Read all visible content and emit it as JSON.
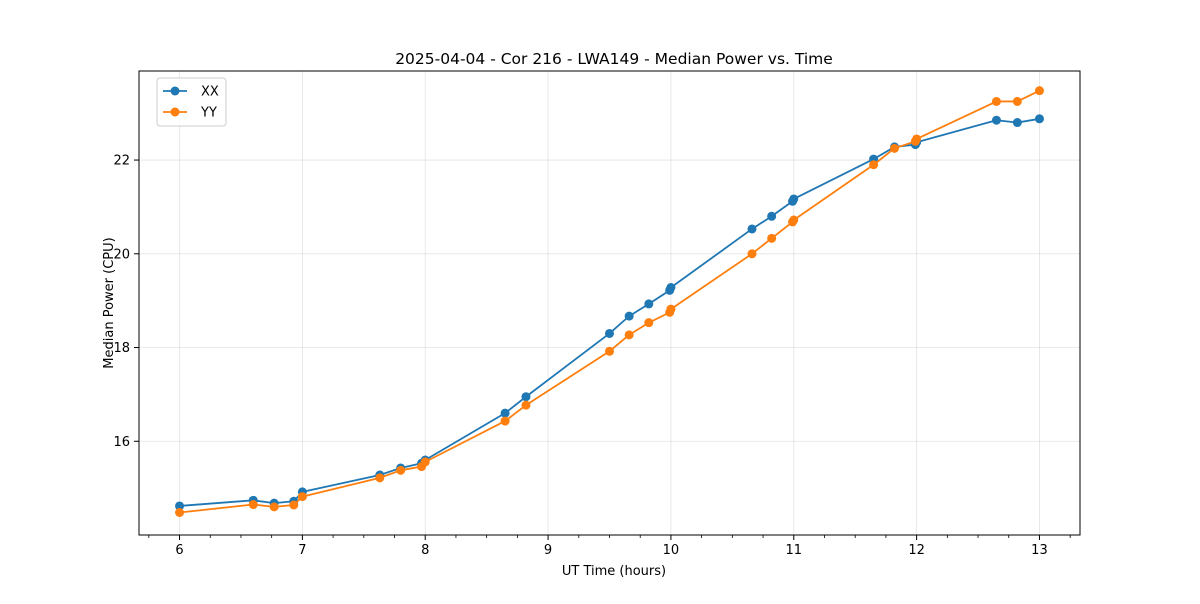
{
  "chart_data": {
    "type": "line",
    "title": "2025-04-04 - Cor 216 - LWA149 - Median Power vs. Time",
    "xlabel": "UT Time (hours)",
    "ylabel": "Median Power (CPU)",
    "xlim": [
      5.67,
      13.33
    ],
    "ylim": [
      14.0,
      23.9
    ],
    "x_ticks": [
      6,
      7,
      8,
      9,
      10,
      11,
      12,
      13
    ],
    "x_tick_labels": [
      "6",
      "7",
      "8",
      "9",
      "10",
      "11",
      "12",
      "13"
    ],
    "x_minor_step": 0.25,
    "y_ticks": [
      16,
      18,
      20,
      22
    ],
    "y_tick_labels": [
      "16",
      "18",
      "20",
      "22"
    ],
    "grid": true,
    "legend_position": "upper-left",
    "series": [
      {
        "name": "XX",
        "color": "#1f77b4",
        "marker": "circle",
        "x": [
          6.0,
          6.6,
          6.77,
          6.93,
          7.0,
          7.63,
          7.8,
          7.97,
          8.0,
          8.65,
          8.82,
          9.5,
          9.66,
          9.82,
          9.99,
          10.0,
          10.66,
          10.82,
          10.99,
          11.0,
          11.65,
          11.82,
          11.99,
          12.0,
          12.65,
          12.82,
          13.0
        ],
        "y": [
          14.62,
          14.74,
          14.68,
          14.72,
          14.92,
          15.28,
          15.43,
          15.53,
          15.6,
          16.6,
          16.95,
          18.3,
          18.67,
          18.93,
          19.22,
          19.28,
          20.53,
          20.8,
          21.12,
          21.17,
          22.02,
          22.28,
          22.33,
          22.38,
          22.85,
          22.8,
          22.88
        ]
      },
      {
        "name": "YY",
        "color": "#ff7f0e",
        "marker": "circle",
        "x": [
          6.0,
          6.6,
          6.77,
          6.93,
          7.0,
          7.63,
          7.8,
          7.97,
          8.0,
          8.65,
          8.82,
          9.5,
          9.66,
          9.82,
          9.99,
          10.0,
          10.66,
          10.82,
          10.99,
          11.0,
          11.65,
          11.82,
          11.99,
          12.0,
          12.65,
          12.82,
          13.0
        ],
        "y": [
          14.48,
          14.65,
          14.6,
          14.64,
          14.82,
          15.22,
          15.38,
          15.46,
          15.56,
          16.43,
          16.77,
          17.92,
          18.27,
          18.53,
          18.75,
          18.82,
          20.0,
          20.33,
          20.68,
          20.72,
          21.9,
          22.25,
          22.4,
          22.45,
          23.25,
          23.25,
          23.48
        ]
      }
    ]
  }
}
